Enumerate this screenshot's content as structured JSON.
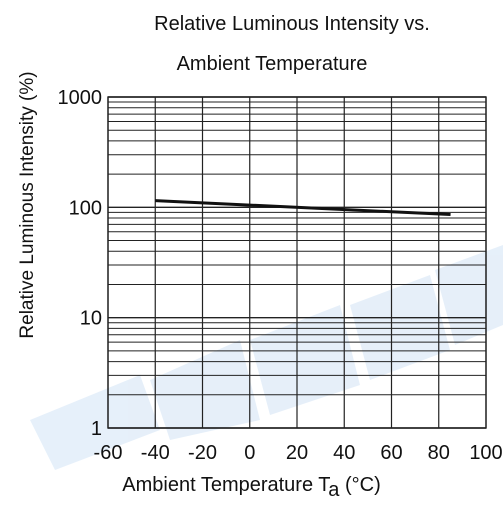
{
  "chart_data": {
    "type": "line",
    "title_line1": "Relative Luminous Intensity vs.",
    "title_line2": "Ambient Temperature",
    "ylabel": "Relative Luminous Intensity  (%)",
    "xlabel_main": "Ambient Temperature T",
    "xlabel_sub": "a",
    "xlabel_unit": " (°C)",
    "x_ticks": [
      "-60",
      "-40",
      "-20",
      "0",
      "20",
      "40",
      "60",
      "80",
      "100"
    ],
    "y_ticks": [
      "1",
      "10",
      "100",
      "1000"
    ],
    "xlim": [
      -60,
      100
    ],
    "ylim": [
      1,
      1000
    ],
    "yscale": "log",
    "grid": true,
    "series": [
      {
        "x": [
          -40,
          85
        ],
        "y": [
          115,
          86
        ]
      }
    ],
    "colors": {
      "line": "#111111",
      "grid": "#222222",
      "watermark": "#dbe9f7"
    }
  }
}
